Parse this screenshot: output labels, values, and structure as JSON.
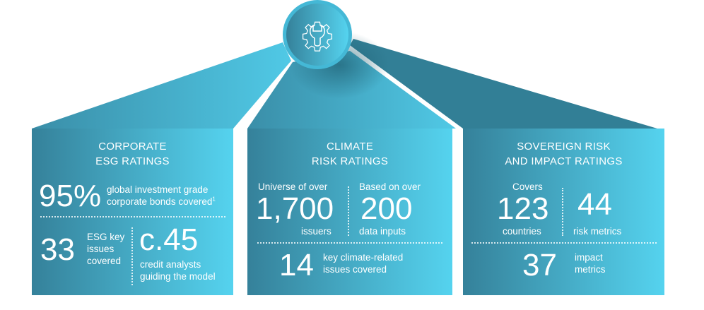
{
  "center_icon": "gear-wrench-icon",
  "colors": {
    "dark": "#35819a",
    "light": "#55d3ef",
    "roof_dark": "#2f7d93"
  },
  "panels": [
    {
      "title": [
        "CORPORATE",
        "ESG RATINGS"
      ],
      "stats": [
        {
          "value": "95%",
          "label": [
            "global investment grade",
            "corporate bonds covered"
          ],
          "footnote": "1"
        },
        {
          "value": "33",
          "label": [
            "ESG key",
            "issues",
            "covered"
          ]
        },
        {
          "value": "c.45",
          "label": [
            "credit analysts",
            "guiding the model"
          ]
        }
      ]
    },
    {
      "title": [
        "CLIMATE",
        "RISK RATINGS"
      ],
      "stats": [
        {
          "prefix": "Universe of over",
          "value": "1,700",
          "label": [
            "issuers"
          ]
        },
        {
          "prefix": "Based on over",
          "value": "200",
          "label": [
            "data inputs"
          ]
        },
        {
          "value": "14",
          "label": [
            "key climate-related",
            "issues covered"
          ]
        }
      ]
    },
    {
      "title": [
        "SOVEREIGN RISK",
        "AND IMPACT RATINGS"
      ],
      "stats": [
        {
          "prefix": "Covers",
          "value": "123",
          "label": [
            "countries"
          ]
        },
        {
          "value": "44",
          "label": [
            "risk metrics"
          ]
        },
        {
          "value": "37",
          "label": [
            "impact",
            "metrics"
          ]
        }
      ]
    }
  ]
}
